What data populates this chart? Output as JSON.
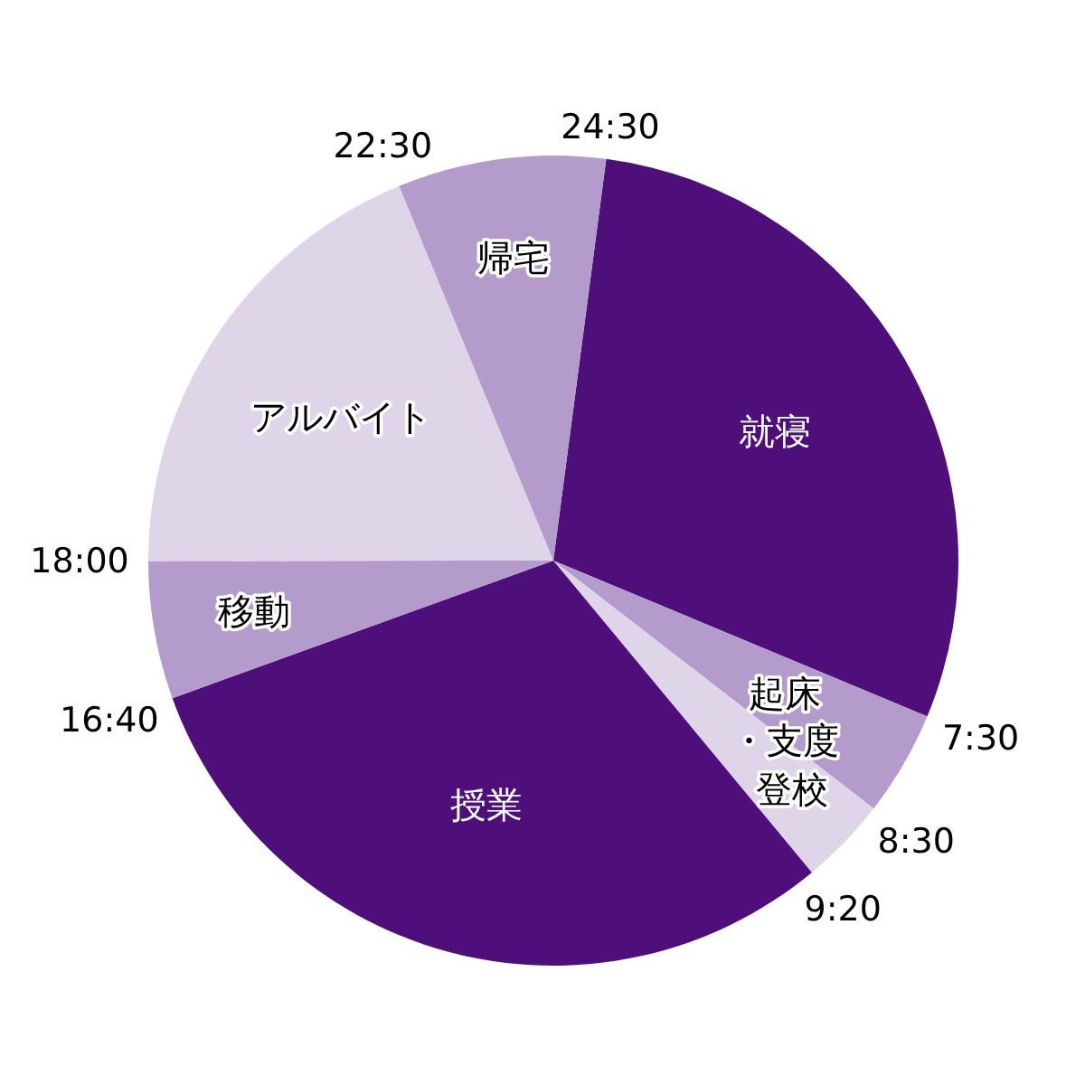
{
  "chart_data": {
    "type": "pie",
    "categories": [
      "就寝",
      "起床・支度",
      "登校",
      "授業",
      "移動",
      "アルバイト",
      "帰宅"
    ],
    "values": [
      29.2,
      4.2,
      3.5,
      30.5,
      5.5,
      18.8,
      8.3
    ],
    "colors": [
      "#4e0f7b",
      "#b39bcb",
      "#dfd5e8",
      "#4e0f7b",
      "#b39bcb",
      "#dfd5e8",
      "#b39bcb"
    ],
    "annotations": [
      "7:30",
      "8:30",
      "9:20",
      "16:40",
      "18:00",
      "22:30",
      "24:30"
    ]
  }
}
